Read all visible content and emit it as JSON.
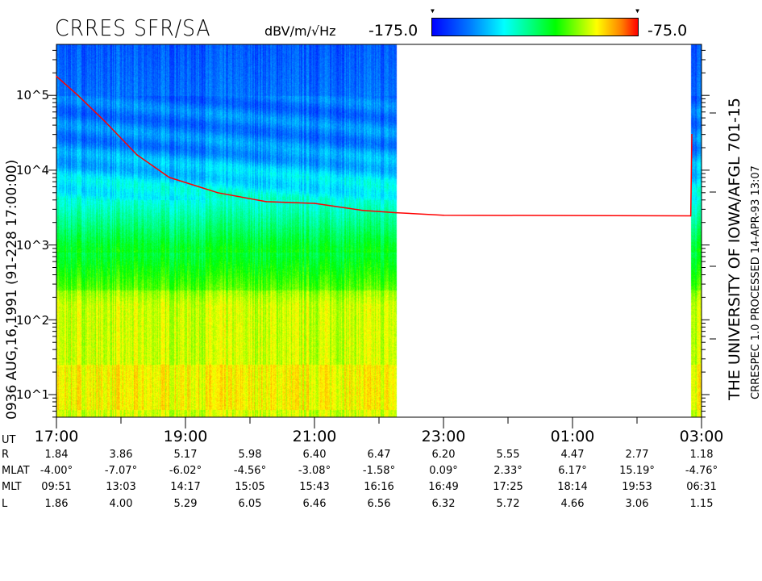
{
  "header": {
    "title": "CRRES SFR/SA",
    "units": "dBV/m/√Hz",
    "colorbar_min": "-175.0",
    "colorbar_max": "-75.0"
  },
  "left_label": "0936    AUG,16,1991    (91-228 17:00:00)",
  "right_label_1": "THE UNIVERSITY OF IOWA/AFGL 701-15",
  "right_label_2": "CRRESPEC 1.0    PROCESSED 14-APR-93   13:07",
  "colors": {
    "trace": "#ff0000",
    "colormap": [
      "#0000ff",
      "#00ffff",
      "#00ff00",
      "#ffff00",
      "#ff0000"
    ]
  },
  "chart_data": {
    "type": "heatmap",
    "title": "CRRES SFR/SA",
    "colorbar": {
      "label": "dBV/m/√Hz",
      "min": -175.0,
      "max": -75.0
    },
    "x_axis": {
      "ticks": [
        "17:00",
        "19:00",
        "21:00",
        "23:00",
        "01:00",
        "03:00"
      ],
      "range_hours_UT": [
        "17:00",
        "03:00"
      ],
      "data_coverage": [
        [
          "17:00",
          "22:16"
        ],
        [
          "02:50",
          "03:00"
        ]
      ]
    },
    "y_axis": {
      "scale": "log",
      "unit": "Hz",
      "tick_labels": [
        "10^1",
        "10^2",
        "10^3",
        "10^4",
        "10^5"
      ],
      "range": [
        5,
        480000
      ]
    },
    "trace": {
      "color": "red",
      "points": [
        {
          "t": "17:00",
          "f": 180000
        },
        {
          "t": "17:20",
          "f": 100000
        },
        {
          "t": "17:45",
          "f": 45000
        },
        {
          "t": "18:15",
          "f": 16000
        },
        {
          "t": "18:45",
          "f": 8000
        },
        {
          "t": "19:30",
          "f": 5000
        },
        {
          "t": "20:15",
          "f": 3800
        },
        {
          "t": "21:00",
          "f": 3600
        },
        {
          "t": "21:45",
          "f": 2900
        },
        {
          "t": "22:16",
          "f": 2700
        },
        {
          "t": "23:00",
          "f": 2500
        },
        {
          "t": "02:50",
          "f": 2450
        },
        {
          "t": "02:51",
          "f": 30000
        }
      ]
    },
    "ephemeris": {
      "labels": [
        "UT",
        "R",
        "MLAT",
        "MLT",
        "L"
      ],
      "UT": [
        "17:00",
        "",
        "19:00",
        "",
        "21:00",
        "",
        "23:00",
        "",
        "01:00",
        "",
        "03:00"
      ],
      "R": [
        "1.84",
        "3.86",
        "5.17",
        "5.98",
        "6.40",
        "6.47",
        "6.20",
        "5.55",
        "4.47",
        "2.77",
        "1.18"
      ],
      "MLAT": [
        "-4.00°",
        "-7.07°",
        "-6.02°",
        "-4.56°",
        "-3.08°",
        "-1.58°",
        "0.09°",
        "2.33°",
        "6.17°",
        "15.19°",
        "-4.76°"
      ],
      "MLT": [
        "09:51",
        "13:03",
        "14:17",
        "15:05",
        "15:43",
        "16:16",
        "16:49",
        "17:25",
        "18:14",
        "19:53",
        "06:31"
      ],
      "L": [
        "1.86",
        "4.00",
        "5.29",
        "6.05",
        "6.46",
        "6.56",
        "6.32",
        "5.72",
        "4.66",
        "3.06",
        "1.15"
      ]
    }
  }
}
